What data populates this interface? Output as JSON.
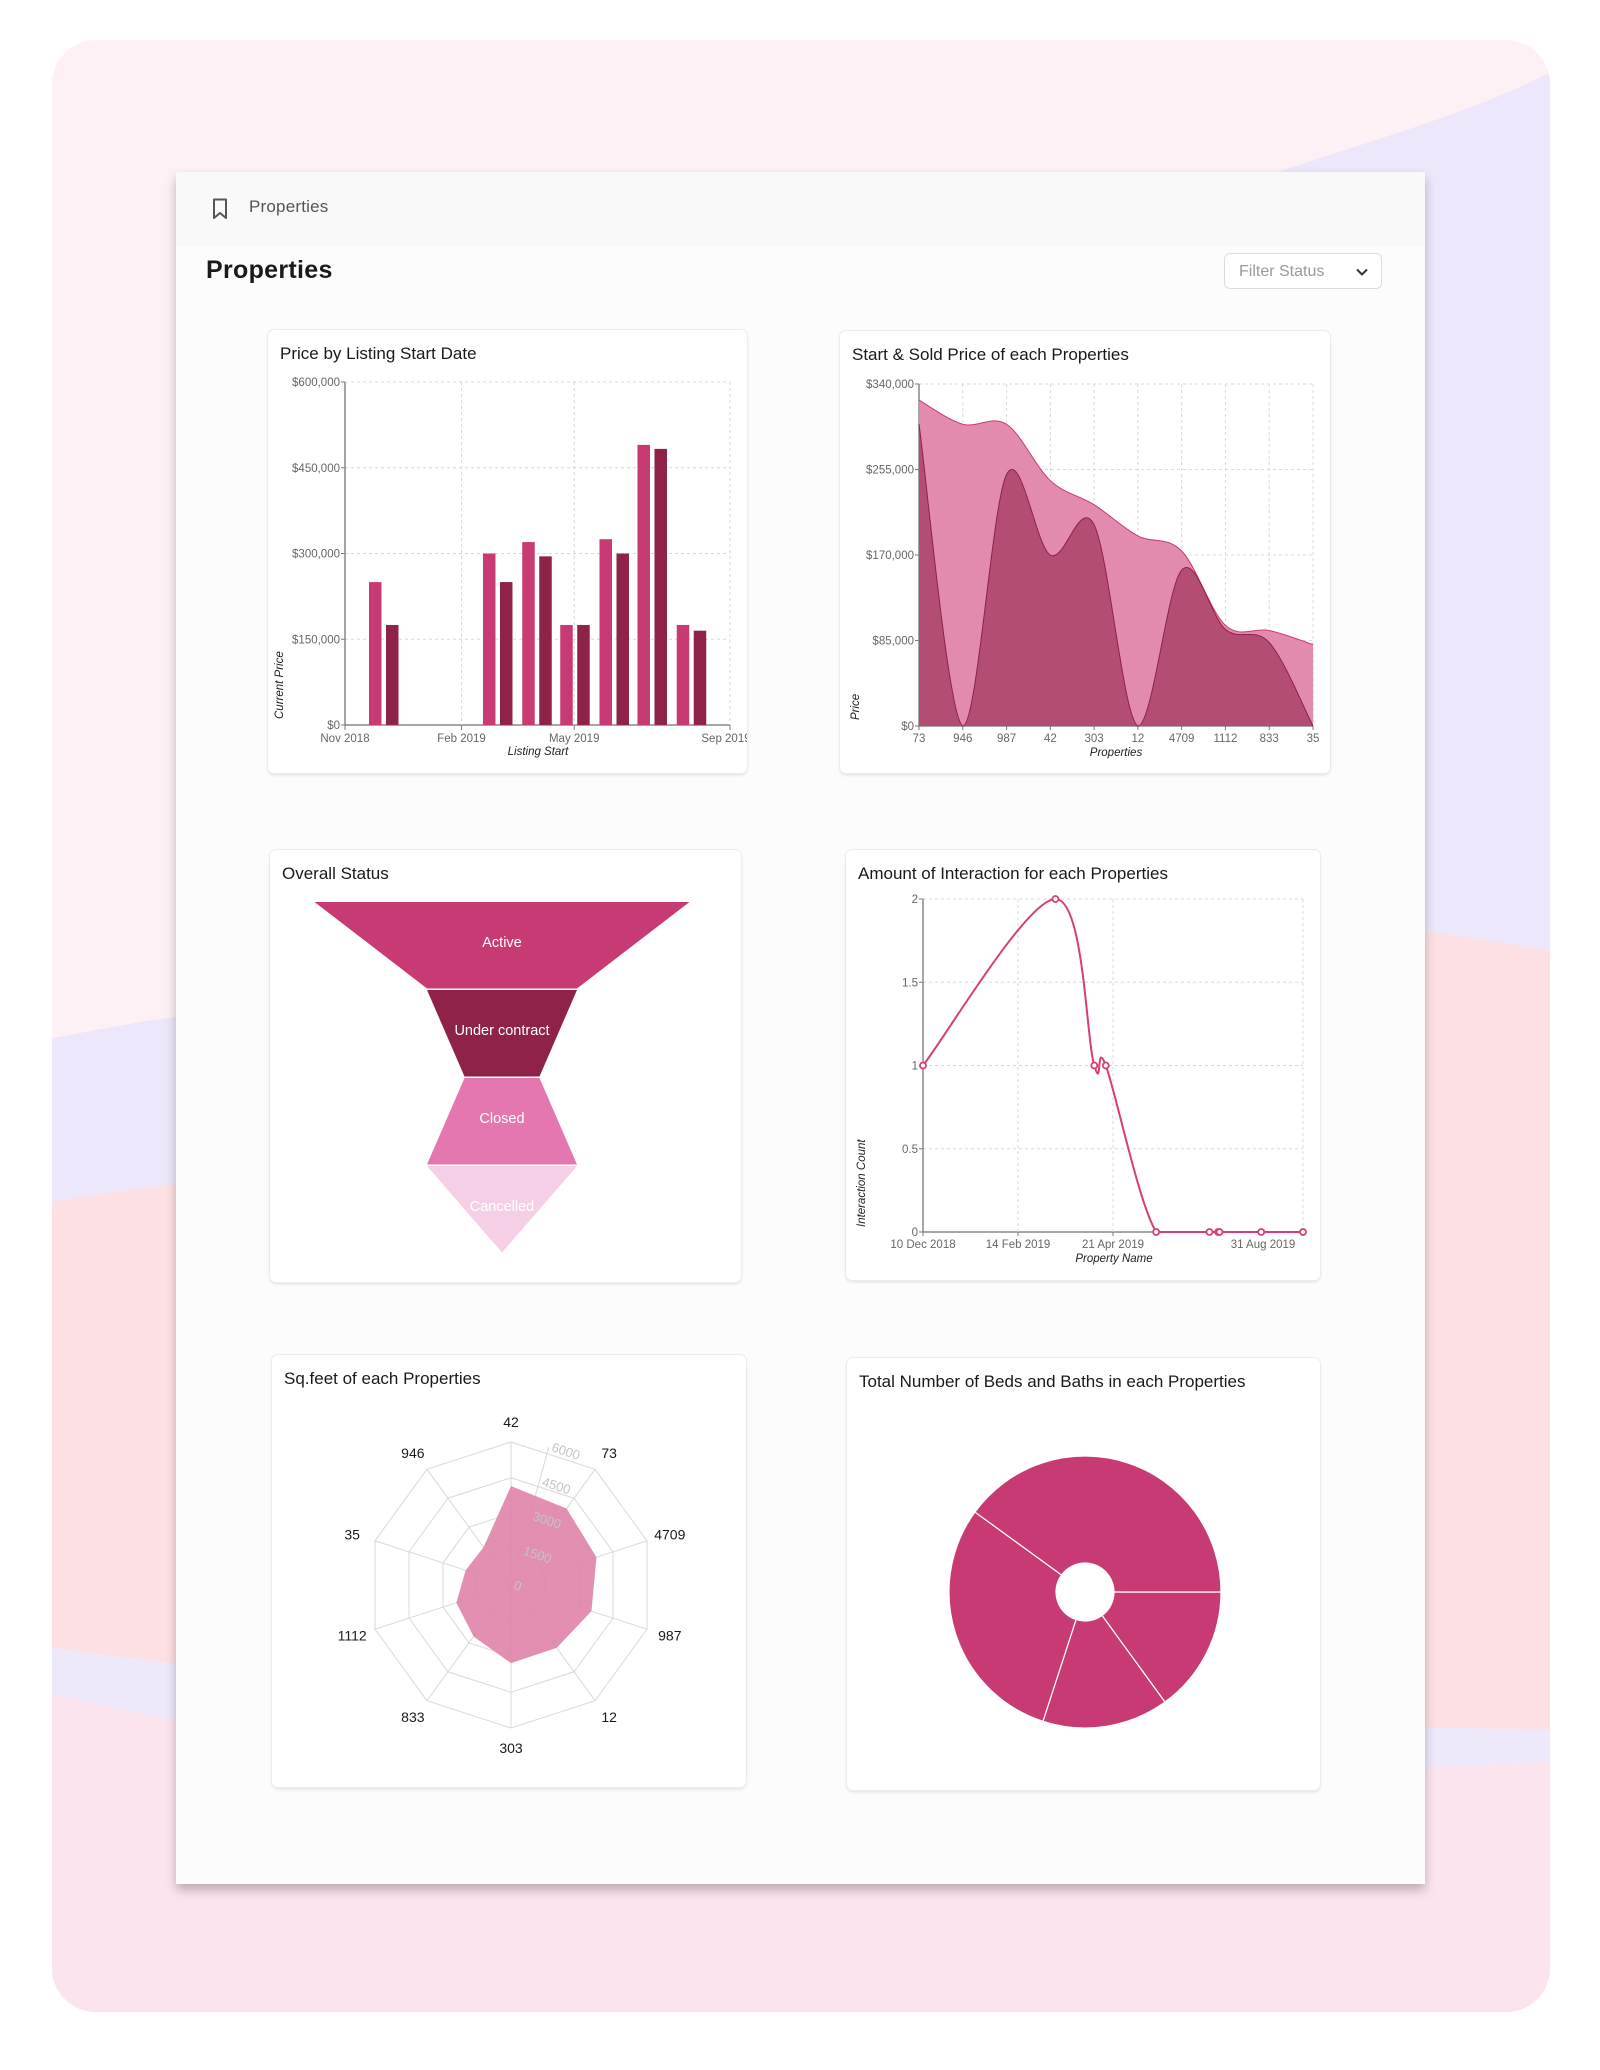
{
  "breadcrumb": {
    "icon": "bookmark-icon",
    "label": "Properties"
  },
  "page_title": "Properties",
  "filter": {
    "label": "Filter Status",
    "icon": "chevron-down-icon"
  },
  "colors": {
    "primary": "#c83a73",
    "dark": "#8e2249",
    "light": "#e07fa8",
    "pale": "#f4cfe5",
    "area_top": "#e085aa",
    "area_bottom": "#b04a70"
  },
  "chart_data": [
    {
      "type": "bar",
      "title": "Price by Listing Start Date",
      "xlabel": "Listing Start",
      "ylabel": "Current Price",
      "x_ticks": [
        "Nov 2018",
        "Feb 2019",
        "May 2019",
        "Sep 2019"
      ],
      "x_tick_dates": [
        "2018-11-01",
        "2019-02-01",
        "2019-05-01",
        "2019-09-01"
      ],
      "y_ticks": [
        "$0",
        "$150,000",
        "$300,000",
        "$450,000",
        "$600,000"
      ],
      "ylim": [
        0,
        600000
      ],
      "x": [
        "2018-12-01",
        "2019-03-01",
        "2019-04-01",
        "2019-05-01",
        "2019-06-01",
        "2019-07-01",
        "2019-08-01"
      ],
      "series": [
        {
          "color": "#c83a73",
          "values": [
            250000,
            300000,
            320000,
            175000,
            325000,
            490000,
            175000
          ]
        },
        {
          "color": "#8e2249",
          "values": [
            175000,
            250000,
            295000,
            175000,
            300000,
            483000,
            165000
          ]
        }
      ],
      "grid": true
    },
    {
      "type": "area",
      "title": "Start & Sold Price of each Properties",
      "xlabel": "Properties",
      "ylabel": "Price",
      "categories": [
        "73",
        "946",
        "987",
        "42",
        "303",
        "12",
        "4709",
        "1112",
        "833",
        "35"
      ],
      "y_ticks": [
        "$0",
        "$85,000",
        "$170,000",
        "$255,000",
        "$340,000"
      ],
      "ylim": [
        0,
        340000
      ],
      "series": [
        {
          "color": "#e085aa",
          "values": [
            324000,
            300000,
            300000,
            244000,
            220000,
            189000,
            174000,
            100000,
            95000,
            81000
          ]
        },
        {
          "color": "#b04a70",
          "values": [
            300000,
            0,
            250000,
            170000,
            200000,
            0,
            155000,
            96000,
            83000,
            0
          ]
        }
      ],
      "grid": true
    },
    {
      "type": "funnel",
      "title": "Overall Status",
      "categories": [
        "Active",
        "Under contract",
        "Closed",
        "Cancelled"
      ],
      "values": [
        5,
        2,
        1,
        2
      ],
      "colors": [
        "#c83a73",
        "#8e2249",
        "#e477b0",
        "#f4cfe5"
      ]
    },
    {
      "type": "line",
      "title": "Amount of Interaction for each Properties",
      "xlabel": "Property Name",
      "ylabel": "Interaction Count",
      "x_ticks": [
        "10 Dec 2018",
        "14 Feb 2019",
        "21 Apr 2019",
        "31 Aug 2019"
      ],
      "x_tick_dates": [
        "2018-12-10",
        "2019-02-14",
        "2019-04-21",
        "2019-08-31"
      ],
      "y_ticks": [
        "0",
        "0.5",
        "1",
        "1.5",
        "2"
      ],
      "ylim": [
        0,
        2
      ],
      "x": [
        "2018-12-10",
        "2019-03-12",
        "2019-04-08",
        "2019-04-16",
        "2019-05-21",
        "2019-06-27",
        "2019-07-03",
        "2019-07-04",
        "2019-08-02",
        "2019-08-31"
      ],
      "values": [
        1,
        2,
        1,
        1,
        0,
        0,
        0,
        0,
        0,
        0
      ],
      "color": "#d63d7a",
      "grid": true
    },
    {
      "type": "radar",
      "title": "Sq.feet of each Properties",
      "categories": [
        "42",
        "73",
        "4709",
        "987",
        "12",
        "303",
        "833",
        "1112",
        "35",
        "946"
      ],
      "values": [
        4150,
        3970,
        3770,
        3550,
        3260,
        3280,
        2670,
        2410,
        2000,
        1960
      ],
      "r_ticks": [
        "0",
        "1500",
        "3000",
        "4500",
        "6000"
      ],
      "rlim": [
        0,
        6000
      ],
      "color": "#e085aa"
    },
    {
      "type": "pie",
      "title": "Total Number of Beds and Baths in each Properties",
      "values": [
        3,
        3,
        6,
        8
      ],
      "donut": true,
      "color": "#c83a73"
    }
  ]
}
